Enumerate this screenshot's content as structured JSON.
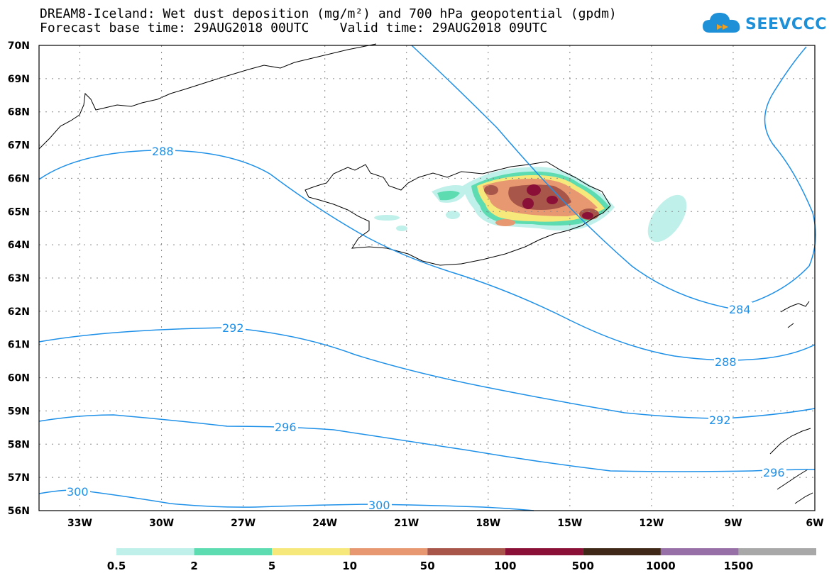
{
  "header": {
    "title_line1": "DREAM8-Iceland: Wet dust deposition (mg/m²) and 700 hPa geopotential (gpdm)",
    "title_line2": "Forecast base time: 29AUG2018 00UTC    Valid time: 29AUG2018 09UTC"
  },
  "logo": {
    "text": "SEEVCCC",
    "icon": "cloud-icon",
    "color": "#1e90d8"
  },
  "map": {
    "latitude_labels": [
      "70N",
      "69N",
      "68N",
      "67N",
      "66N",
      "65N",
      "64N",
      "63N",
      "62N",
      "61N",
      "60N",
      "59N",
      "58N",
      "57N",
      "56N"
    ],
    "longitude_labels": [
      "33W",
      "30W",
      "27W",
      "24W",
      "21W",
      "18W",
      "15W",
      "12W",
      "9W",
      "6W"
    ],
    "contour_color": "#1e90e8",
    "contour_labels": [
      "288",
      "292",
      "296",
      "300",
      "284",
      "288",
      "292",
      "296",
      "300"
    ]
  },
  "colorbar": {
    "ticks": [
      "0.5",
      "2",
      "5",
      "10",
      "50",
      "100",
      "500",
      "1000",
      "1500"
    ],
    "colors": [
      "#c0f0ea",
      "#5cdcb0",
      "#f6e87a",
      "#e89870",
      "#a8564a",
      "#8a1038",
      "#402818",
      "#9870a8",
      "#a8a8a8"
    ]
  }
}
